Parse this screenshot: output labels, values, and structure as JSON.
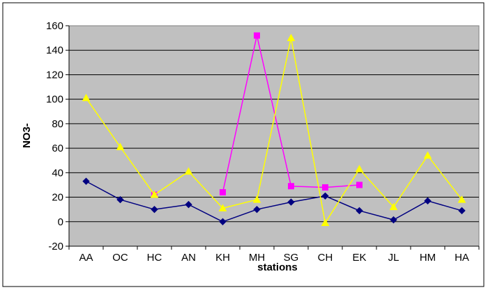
{
  "chart_data": {
    "type": "line",
    "categories": [
      "AA",
      "OC",
      "HC",
      "AN",
      "KH",
      "MH",
      "SG",
      "CH",
      "EK",
      "JL",
      "HM",
      "HA"
    ],
    "xlabel": "stations",
    "ylabel": "NO3-",
    "ylim": [
      -20,
      160
    ],
    "yticks": [
      -20,
      0,
      20,
      40,
      60,
      80,
      100,
      120,
      140,
      160
    ],
    "grid": "horizontal major gridlines",
    "plot_background": "#c0c0c0",
    "series": [
      {
        "color": "#000080",
        "marker": "diamond",
        "values": [
          33,
          18,
          10,
          14,
          0,
          10,
          16,
          21,
          9,
          1.5,
          17,
          9
        ]
      },
      {
        "color": "#ff00ff",
        "marker": "square",
        "values": [
          null,
          null,
          22,
          null,
          24,
          152,
          29,
          28,
          30,
          null,
          null,
          null
        ]
      },
      {
        "color": "#ffff00",
        "marker": "triangle",
        "values": [
          101,
          61,
          22,
          41,
          11,
          18,
          150,
          -1,
          43,
          12,
          54,
          18
        ]
      }
    ]
  }
}
